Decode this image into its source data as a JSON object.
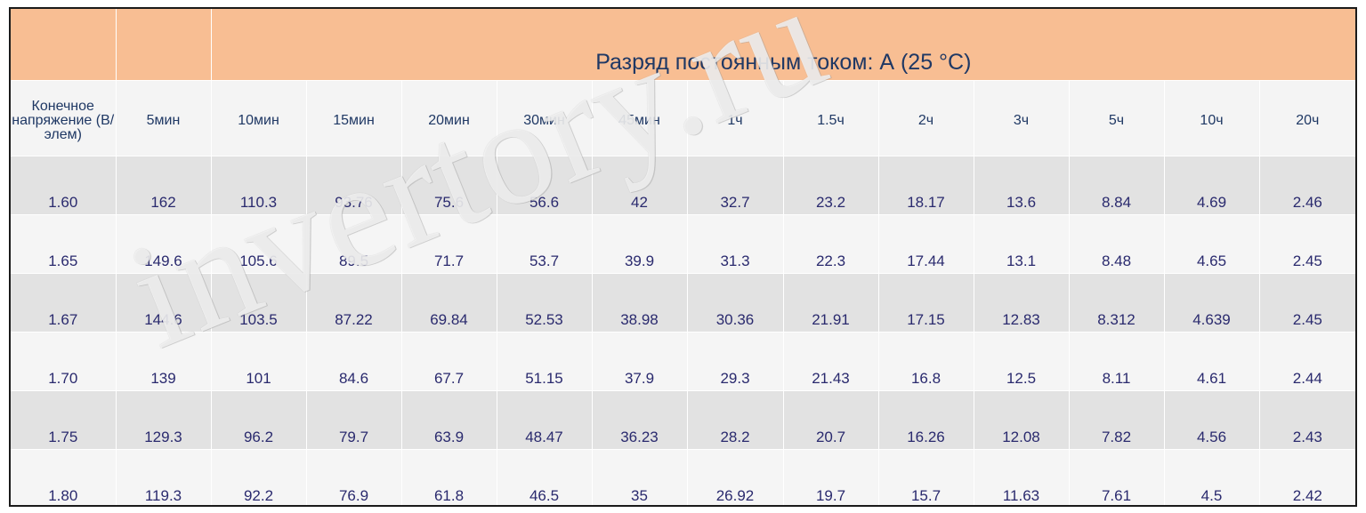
{
  "title": "Разряд постоянным током: А (25 °C)",
  "header": {
    "first": "Конечное напряжение (В/элем)",
    "columns": [
      "5мин",
      "10мин",
      "15мин",
      "20мин",
      "30мин",
      "45мин",
      "1ч",
      "1.5ч",
      "2ч",
      "3ч",
      "5ч",
      "10ч",
      "20ч"
    ]
  },
  "rows": [
    {
      "voltage": "1.60",
      "values": [
        "162",
        "110.3",
        "93.76",
        "75.6",
        "56.6",
        "42",
        "32.7",
        "23.2",
        "18.17",
        "13.6",
        "8.84",
        "4.69",
        "2.46"
      ]
    },
    {
      "voltage": "1.65",
      "values": [
        "149.6",
        "105.6",
        "89.5",
        "71.7",
        "53.7",
        "39.9",
        "31.3",
        "22.3",
        "17.44",
        "13.1",
        "8.48",
        "4.65",
        "2.45"
      ]
    },
    {
      "voltage": "1.67",
      "values": [
        "144.6",
        "103.5",
        "87.22",
        "69.84",
        "52.53",
        "38.98",
        "30.36",
        "21.91",
        "17.15",
        "12.83",
        "8.312",
        "4.639",
        "2.45"
      ]
    },
    {
      "voltage": "1.70",
      "values": [
        "139",
        "101",
        "84.6",
        "67.7",
        "51.15",
        "37.9",
        "29.3",
        "21.43",
        "16.8",
        "12.5",
        "8.11",
        "4.61",
        "2.44"
      ]
    },
    {
      "voltage": "1.75",
      "values": [
        "129.3",
        "96.2",
        "79.7",
        "63.9",
        "48.47",
        "36.23",
        "28.2",
        "20.7",
        "16.26",
        "12.08",
        "7.82",
        "4.56",
        "2.43"
      ]
    },
    {
      "voltage": "1.80",
      "values": [
        "119.3",
        "92.2",
        "76.9",
        "61.8",
        "46.5",
        "35",
        "26.92",
        "19.7",
        "15.7",
        "11.63",
        "7.61",
        "4.5",
        "2.42"
      ]
    }
  ],
  "watermark": "invertory.ru",
  "colors": {
    "title_bg": "#f8be93",
    "title_text": "#1f3864",
    "cell_text": "#2a2a6e",
    "shade_row": "#e2e2e2",
    "light_row": "#f5f5f5"
  }
}
